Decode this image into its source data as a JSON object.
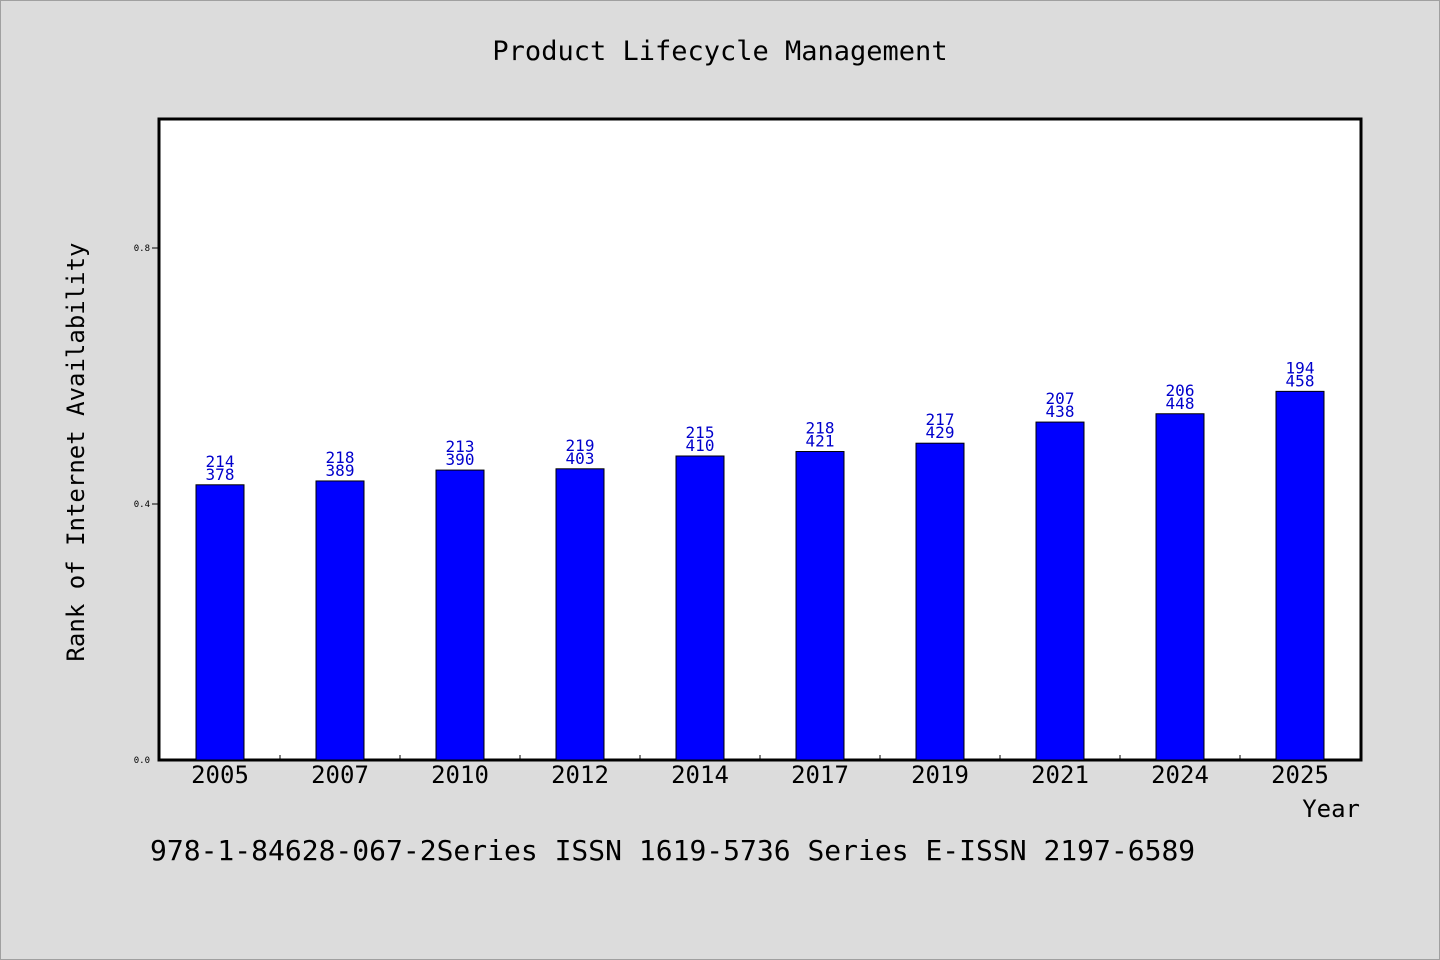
{
  "chart_data": {
    "type": "bar",
    "title": "Product Lifecycle Management",
    "xlabel": "Year",
    "ylabel": "Rank of Internet Availability",
    "categories": [
      "2005",
      "2007",
      "2010",
      "2012",
      "2014",
      "2017",
      "2019",
      "2021",
      "2024",
      "2025"
    ],
    "series": [
      {
        "values": [
          0.43,
          0.436,
          0.453,
          0.455,
          0.475,
          0.482,
          0.495,
          0.528,
          0.541,
          0.576
        ]
      }
    ],
    "data_labels_top": [
      "214",
      "218",
      "213",
      "219",
      "215",
      "218",
      "217",
      "207",
      "206",
      "194"
    ],
    "data_labels_bottom": [
      "378",
      "389",
      "390",
      "403",
      "410",
      "421",
      "429",
      "438",
      "448",
      "458"
    ],
    "ylim": [
      0,
      1.0
    ],
    "yticks": [
      "0.0",
      "0.4",
      "0.8"
    ],
    "grid": false,
    "colors": {
      "bar": "#0000ff",
      "label": "#0000cc",
      "background": "#dcdcdc",
      "plot_bg": "#ffffff"
    }
  },
  "caption": "978-1-84628-067-2Series ISSN 1619-5736 Series E-ISSN 2197-6589"
}
